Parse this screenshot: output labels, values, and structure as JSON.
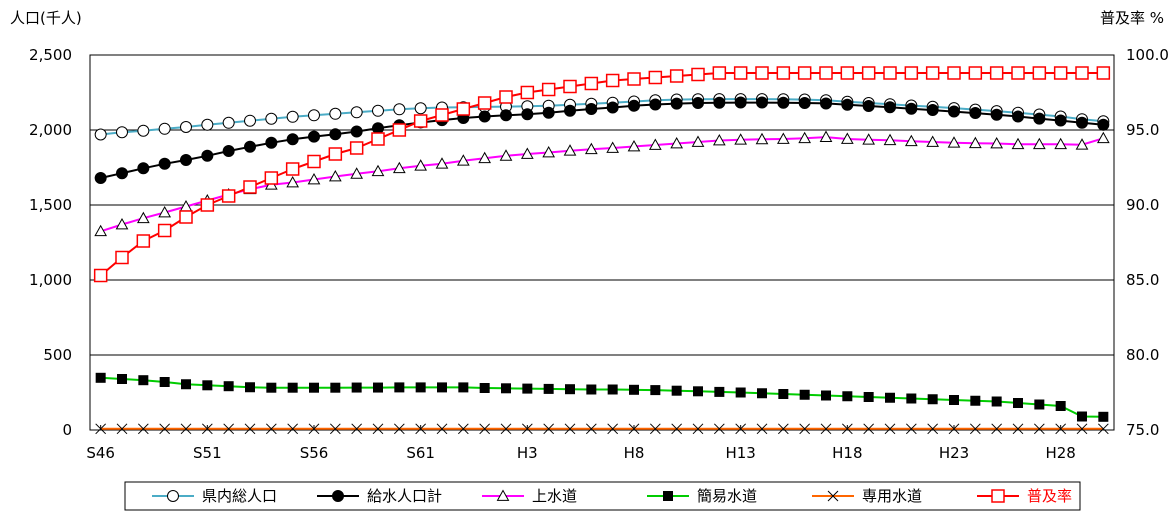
{
  "chart_data": {
    "type": "line",
    "title": "",
    "ylabel_left": "人口(千人)",
    "ylabel_right": "普及率 %",
    "categories": [
      "S46",
      "S47",
      "S48",
      "S49",
      "S50",
      "S51",
      "S52",
      "S53",
      "S54",
      "S55",
      "S56",
      "S57",
      "S58",
      "S59",
      "S60",
      "S61",
      "S62",
      "S63",
      "H1",
      "H2",
      "H3",
      "H4",
      "H5",
      "H6",
      "H7",
      "H8",
      "H9",
      "H10",
      "H11",
      "H12",
      "H13",
      "H14",
      "H15",
      "H16",
      "H17",
      "H18",
      "H19",
      "H20",
      "H21",
      "H22",
      "H23",
      "H24",
      "H25",
      "H26",
      "H27",
      "H28",
      "H29",
      "H30"
    ],
    "xticks": [
      "S46",
      "S51",
      "S56",
      "S61",
      "H3",
      "H8",
      "H13",
      "H18",
      "H23",
      "H28"
    ],
    "ylim_left": [
      0,
      2500
    ],
    "yticks_left": [
      "0",
      "500",
      "1,000",
      "1,500",
      "2,000",
      "2,500"
    ],
    "ylim_right": [
      75.0,
      100.0
    ],
    "yticks_right": [
      "75.0",
      "80.0",
      "85.0",
      "90.0",
      "95.0",
      "100.0"
    ],
    "grid": true,
    "legend_position": "bottom",
    "series": [
      {
        "name": "県内総人口",
        "axis": "left",
        "color": "#4bacc6",
        "marker": "circle-open",
        "values": [
          1970,
          1985,
          1995,
          2008,
          2020,
          2035,
          2048,
          2062,
          2075,
          2088,
          2098,
          2108,
          2118,
          2128,
          2138,
          2145,
          2150,
          2152,
          2154,
          2156,
          2158,
          2162,
          2168,
          2175,
          2182,
          2190,
          2198,
          2203,
          2205,
          2206,
          2206,
          2206,
          2205,
          2203,
          2198,
          2188,
          2180,
          2172,
          2163,
          2155,
          2146,
          2136,
          2126,
          2115,
          2103,
          2090,
          2072,
          2058
        ]
      },
      {
        "name": "給水人口計",
        "axis": "left",
        "color": "#000000",
        "marker": "circle-filled",
        "values": [
          1680,
          1712,
          1745,
          1775,
          1800,
          1828,
          1860,
          1888,
          1915,
          1938,
          1956,
          1972,
          1990,
          2012,
          2032,
          2050,
          2066,
          2080,
          2090,
          2098,
          2105,
          2115,
          2128,
          2140,
          2150,
          2162,
          2170,
          2176,
          2180,
          2182,
          2183,
          2183,
          2182,
          2180,
          2177,
          2168,
          2160,
          2152,
          2142,
          2133,
          2123,
          2113,
          2102,
          2090,
          2076,
          2063,
          2048,
          2035
        ]
      },
      {
        "name": "上水道",
        "axis": "left",
        "color": "#ff00ff",
        "marker": "triangle-open",
        "values": [
          1325,
          1370,
          1412,
          1450,
          1490,
          1530,
          1570,
          1605,
          1635,
          1650,
          1670,
          1690,
          1708,
          1725,
          1745,
          1762,
          1775,
          1795,
          1812,
          1828,
          1840,
          1850,
          1862,
          1872,
          1880,
          1890,
          1900,
          1910,
          1920,
          1930,
          1935,
          1938,
          1940,
          1945,
          1953,
          1940,
          1935,
          1932,
          1925,
          1920,
          1915,
          1912,
          1910,
          1905,
          1905,
          1905,
          1902,
          1945
        ]
      },
      {
        "name": "簡易水道",
        "axis": "left",
        "color": "#00cc00",
        "marker": "square-filled",
        "values": [
          348,
          340,
          332,
          320,
          305,
          298,
          292,
          285,
          282,
          282,
          282,
          282,
          283,
          283,
          284,
          284,
          284,
          284,
          280,
          278,
          276,
          274,
          272,
          270,
          270,
          268,
          266,
          262,
          258,
          254,
          250,
          245,
          240,
          235,
          230,
          225,
          220,
          215,
          210,
          205,
          200,
          195,
          190,
          180,
          170,
          160,
          90,
          88
        ]
      },
      {
        "name": "専用水道",
        "axis": "left",
        "color": "#ff6600",
        "marker": "x",
        "marker_color": "#000000",
        "values": [
          8,
          8,
          8,
          8,
          8,
          8,
          8,
          8,
          8,
          8,
          8,
          8,
          8,
          8,
          8,
          8,
          8,
          8,
          8,
          8,
          8,
          8,
          8,
          8,
          8,
          8,
          8,
          8,
          8,
          8,
          8,
          8,
          8,
          8,
          8,
          8,
          8,
          8,
          8,
          8,
          8,
          8,
          8,
          8,
          8,
          8,
          8,
          8
        ]
      },
      {
        "name": "普及率",
        "axis": "right",
        "color": "#ff0000",
        "marker": "square-open",
        "values": [
          85.3,
          86.5,
          87.6,
          88.3,
          89.2,
          90.0,
          90.6,
          91.2,
          91.8,
          92.4,
          92.9,
          93.4,
          93.8,
          94.4,
          95.0,
          95.6,
          96.0,
          96.4,
          96.8,
          97.2,
          97.5,
          97.7,
          97.9,
          98.1,
          98.3,
          98.4,
          98.5,
          98.6,
          98.7,
          98.8,
          98.8,
          98.8,
          98.8,
          98.8,
          98.8,
          98.8,
          98.8,
          98.8,
          98.8,
          98.8,
          98.8,
          98.8,
          98.8,
          98.8,
          98.8,
          98.8,
          98.8,
          98.8
        ]
      }
    ]
  }
}
